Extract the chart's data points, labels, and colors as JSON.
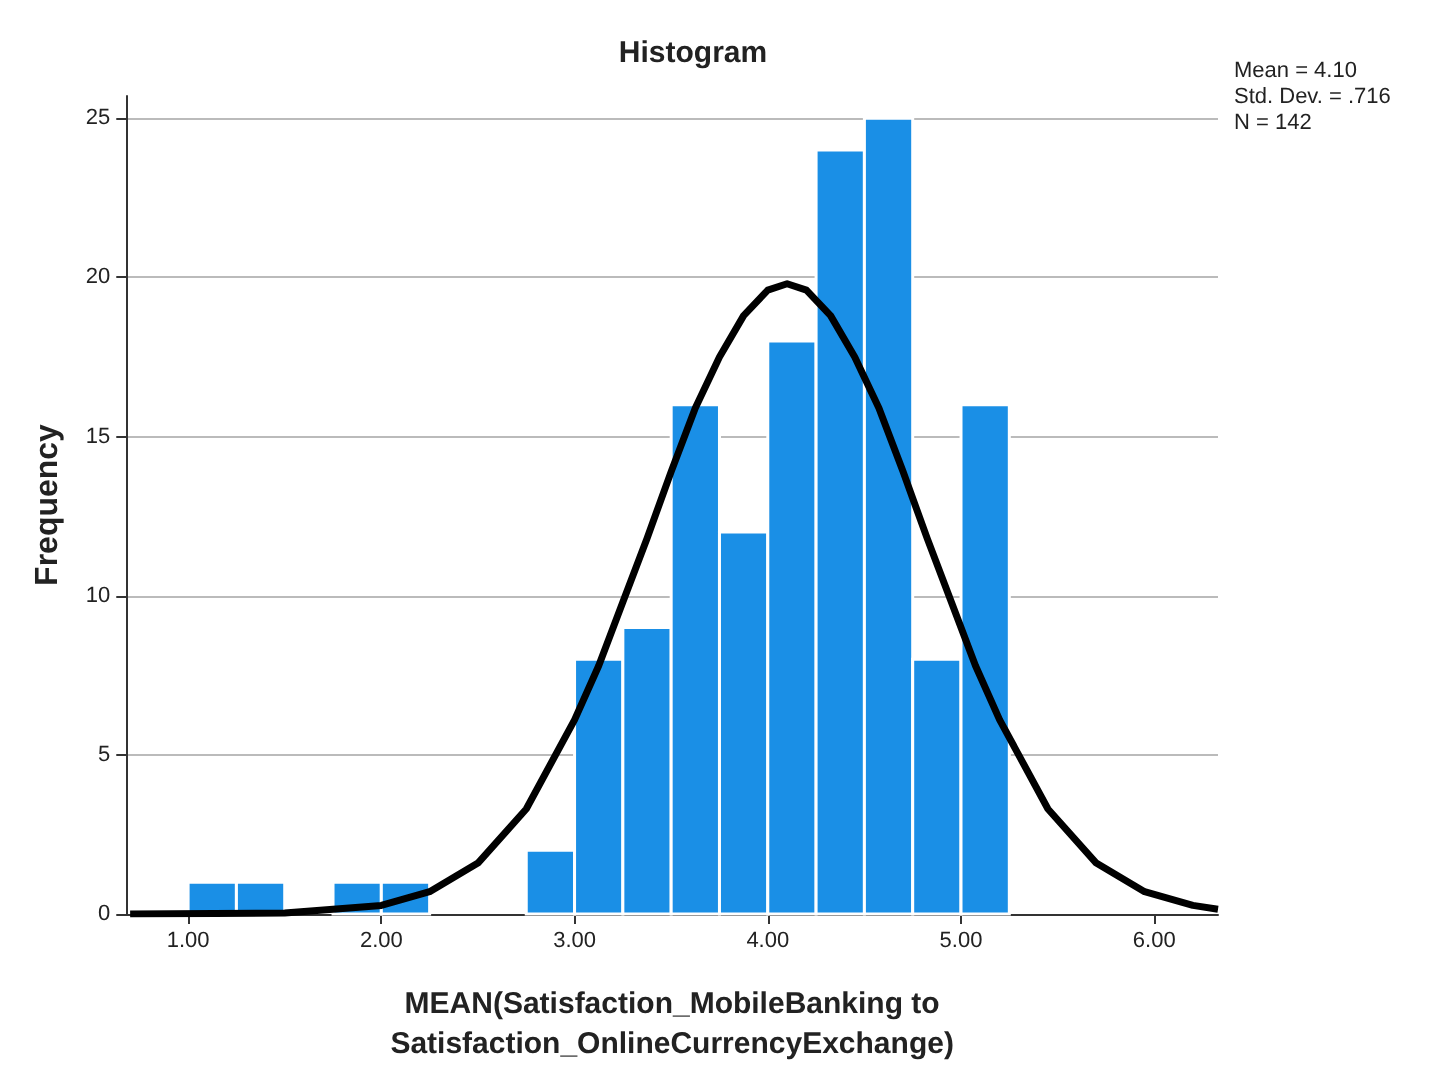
{
  "chart_data": {
    "type": "histogram",
    "title": "Histogram",
    "xlabel": "MEAN(Satisfaction_MobileBanking to\nSatisfaction_OnlineCurrencyExchange)",
    "ylabel": "Frequency",
    "bins": [
      1,
      1.25,
      1.5,
      1.75,
      2,
      2.25,
      2.5,
      2.75,
      3,
      3.25,
      3.5,
      3.75,
      4,
      4.25,
      4.5,
      4.75,
      5,
      5.25
    ],
    "values": [
      1,
      1,
      0,
      1,
      1,
      0,
      0,
      2,
      8,
      9,
      16,
      12,
      18,
      24,
      25,
      8,
      16
    ],
    "color": "#1a8fe6",
    "series": [
      {
        "type": "line",
        "color": "#000000",
        "x": [
          0.7,
          1.5,
          2,
          2.25,
          2.5,
          2.75,
          3,
          3.125,
          3.25,
          3.375,
          3.5,
          3.625,
          3.75,
          3.875,
          4,
          4.1,
          4.2,
          4.325,
          4.45,
          4.575,
          4.7,
          4.825,
          4.95,
          5.075,
          5.2,
          5.45,
          5.7,
          5.95,
          6.2,
          6.33
        ],
        "values": [
          0,
          0.03,
          0.27,
          0.7,
          1.6,
          3.3,
          6.1,
          7.8,
          9.8,
          11.8,
          13.9,
          15.9,
          17.5,
          18.8,
          19.6,
          19.8,
          19.6,
          18.8,
          17.5,
          15.9,
          13.9,
          11.8,
          9.8,
          7.8,
          6.1,
          3.3,
          1.6,
          0.7,
          0.27,
          0.15
        ]
      }
    ],
    "xlim": [
      0.68,
      6.33
    ],
    "xticks": [
      {
        "value": 1,
        "label": "1.00"
      },
      {
        "value": 2,
        "label": "2.00"
      },
      {
        "value": 3,
        "label": "3.00"
      },
      {
        "value": 4,
        "label": "4.00"
      },
      {
        "value": 5,
        "label": "5.00"
      },
      {
        "value": 6,
        "label": "6.00"
      }
    ],
    "ylim": [
      0,
      25.7
    ],
    "yticks": [
      0,
      5,
      10,
      15,
      20,
      25
    ],
    "grid": "y",
    "annotations": [
      "Mean = 4.10",
      "Std. Dev. = .716",
      "N = 142"
    ]
  }
}
